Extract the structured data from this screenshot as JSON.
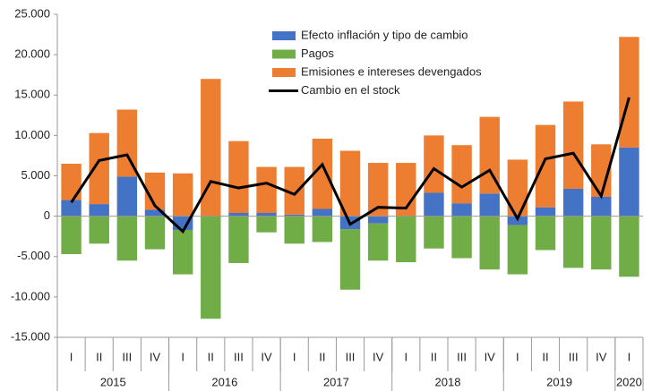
{
  "chart_data": {
    "type": "bar",
    "groups": [
      {
        "name": "2015",
        "categories": [
          "I",
          "II",
          "III",
          "IV"
        ]
      },
      {
        "name": "2016",
        "categories": [
          "I",
          "II",
          "III",
          "IV"
        ]
      },
      {
        "name": "2017",
        "categories": [
          "I",
          "II",
          "III",
          "IV"
        ]
      },
      {
        "name": "2018",
        "categories": [
          "I",
          "II",
          "III",
          "IV"
        ]
      },
      {
        "name": "2019",
        "categories": [
          "I",
          "II",
          "III",
          "IV"
        ]
      },
      {
        "name": "2020",
        "categories": [
          "I"
        ]
      }
    ],
    "series": [
      {
        "name": "Efecto inflación y tipo de cambio",
        "color": "#4472c4",
        "values": [
          2000,
          1500,
          4900,
          800,
          -1700,
          0,
          400,
          400,
          200,
          900,
          -1600,
          -900,
          0,
          2900,
          1600,
          2800,
          -1100,
          1100,
          3400,
          2400,
          8500
        ]
      },
      {
        "name": "Pagos",
        "color": "#70ad47",
        "values": [
          -4700,
          -3400,
          -5500,
          -4100,
          -5500,
          -12700,
          -5800,
          -2000,
          -3400,
          -3200,
          -7500,
          -4600,
          -5700,
          -4000,
          -5200,
          -6600,
          -6100,
          -4200,
          -6400,
          -6600,
          -7500
        ]
      },
      {
        "name": "Emisiones e intereses devengados",
        "color": "#ed7d31",
        "values": [
          4500,
          8800,
          8300,
          4600,
          5300,
          17000,
          8900,
          5700,
          5900,
          8700,
          8100,
          6600,
          6600,
          7100,
          7200,
          9500,
          7000,
          10200,
          10800,
          6500,
          13700
        ]
      },
      {
        "name": "Cambio en el stock",
        "color": "#000000",
        "type": "line",
        "values": [
          1700,
          6900,
          7600,
          1300,
          -1900,
          4300,
          3500,
          4100,
          2700,
          6400,
          -1000,
          1100,
          1000,
          5900,
          3600,
          5700,
          -300,
          7100,
          7800,
          2500,
          14700
        ]
      }
    ],
    "ylim": [
      -15000,
      25000
    ],
    "yticks": [
      {
        "value": -15000,
        "label": "-15.000"
      },
      {
        "value": -10000,
        "label": "-10.000"
      },
      {
        "value": -5000,
        "label": "-5.000"
      },
      0,
      {
        "value": 5000,
        "label": "5.000"
      },
      {
        "value": 10000,
        "label": "10.000"
      },
      {
        "value": 15000,
        "label": "15.000"
      },
      {
        "value": 20000,
        "label": "20.000"
      },
      {
        "value": 25000,
        "label": "25.000"
      }
    ],
    "grid": false,
    "legend": "top"
  }
}
